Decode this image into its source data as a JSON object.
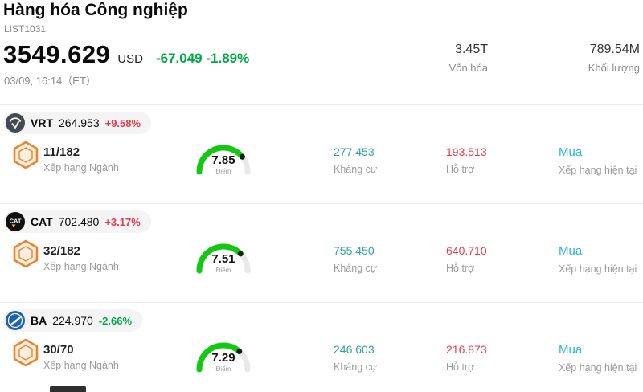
{
  "header": {
    "title": "Hàng hóa Công nghiệp",
    "list_id": "LIST1031",
    "price": "3549.629",
    "currency": "USD",
    "change": "-67.049 -1.89%",
    "change_dir": "down",
    "datetime": "03/09, 16:14（ET）",
    "market_cap": {
      "value": "3.45T",
      "label": "Vốn hóa"
    },
    "volume": {
      "value": "789.54M",
      "label": "Khối lượng"
    }
  },
  "labels": {
    "rank": "Xếp hạng Ngành",
    "gauge": "Điểm",
    "resistance": "Kháng cự",
    "support": "Hỗ trợ",
    "rating": "Xếp hạng hiện tại"
  },
  "colors": {
    "red": "#e13d4d",
    "green": "#00a843",
    "teal": "#2fa39b",
    "cyan": "#29b6cc",
    "gauge_green": "#12c812"
  },
  "stocks": [
    {
      "symbol": "VRT",
      "price": "264.953",
      "change": "+9.58%",
      "change_dir": "up",
      "rank": "11/182",
      "score": 7.85,
      "resistance": "277.453",
      "support": "193.513",
      "rating": "Mua"
    },
    {
      "symbol": "CAT",
      "price": "702.480",
      "change": "+3.17%",
      "change_dir": "up",
      "rank": "32/182",
      "score": 7.51,
      "resistance": "755.450",
      "support": "640.710",
      "rating": "Mua"
    },
    {
      "symbol": "BA",
      "price": "224.970",
      "change": "-2.66%",
      "change_dir": "down",
      "rank": "30/70",
      "score": 7.29,
      "resistance": "246.603",
      "support": "216.873",
      "rating": "Mua"
    }
  ]
}
